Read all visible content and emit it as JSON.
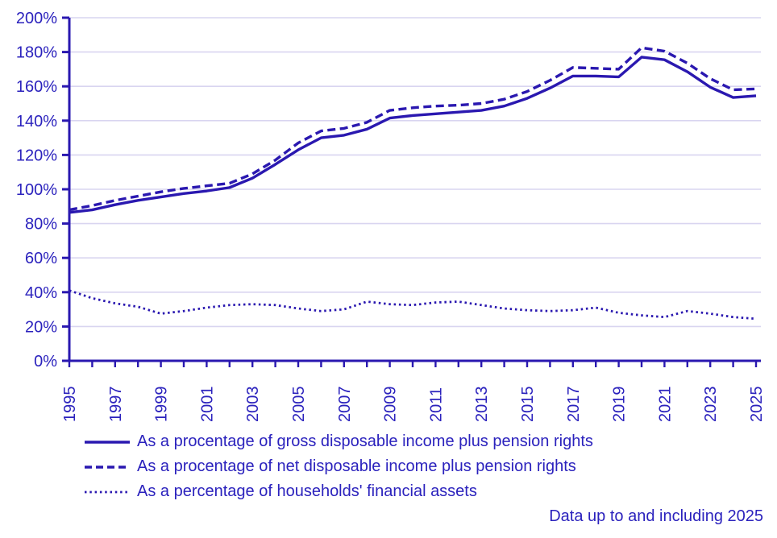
{
  "note": "Data up to and including 2025",
  "colors": {
    "accent": "#2b22bd",
    "line": "#2a18b0",
    "grid": "#d9d5f0",
    "background": "#ffffff"
  },
  "chart_data": {
    "type": "line",
    "title": "",
    "xlabel": "",
    "ylabel": "",
    "x": [
      1995,
      1996,
      1997,
      1998,
      1999,
      2000,
      2001,
      2002,
      2003,
      2004,
      2005,
      2006,
      2007,
      2008,
      2009,
      2010,
      2011,
      2012,
      2013,
      2014,
      2015,
      2016,
      2017,
      2018,
      2019,
      2020,
      2021,
      2022,
      2023,
      2024,
      2025
    ],
    "series": [
      {
        "name": "As a procentage of gross disposable income plus pension rights",
        "style": "solid",
        "values": [
          86.5,
          88,
          91,
          93.5,
          95.5,
          97.5,
          99,
          101,
          106.5,
          114.5,
          123,
          130,
          131.5,
          135,
          141.5,
          143,
          144,
          145,
          146,
          148.5,
          153,
          159,
          166,
          166,
          165.5,
          177,
          175.5,
          168.5,
          159.5,
          153.5,
          154.5
        ]
      },
      {
        "name": "As a procentage of net disposable income plus pension rights",
        "style": "dashed",
        "values": [
          88,
          90.5,
          93.5,
          96,
          98.5,
          100.5,
          102,
          103.5,
          109,
          117,
          127,
          134,
          135.5,
          139,
          146,
          147.5,
          148.5,
          149,
          150,
          152.5,
          157,
          163.5,
          171,
          170.5,
          170,
          182.5,
          180.5,
          173.5,
          164.5,
          158,
          158.5
        ]
      },
      {
        "name": "As a percentage of households' financial assets",
        "style": "dotted",
        "values": [
          41,
          36.5,
          33.5,
          31.5,
          27.5,
          29,
          31,
          32.5,
          33,
          32.5,
          30.5,
          29,
          30,
          34.5,
          33,
          32.5,
          34,
          34.5,
          32.5,
          30.5,
          29.5,
          29,
          29.5,
          31,
          28,
          26.5,
          25.5,
          29,
          27.5,
          25.5,
          24.5
        ]
      }
    ],
    "xlim": [
      1995,
      2025
    ],
    "ylim": [
      0,
      200
    ],
    "y_tick_step": 20,
    "y_tick_suffix": "%",
    "x_tick_labels": [
      1995,
      1997,
      1999,
      2001,
      2003,
      2005,
      2007,
      2009,
      2011,
      2013,
      2015,
      2017,
      2019,
      2021,
      2023,
      2025
    ],
    "grid": "horizontal",
    "legend_position": "bottom-left"
  }
}
